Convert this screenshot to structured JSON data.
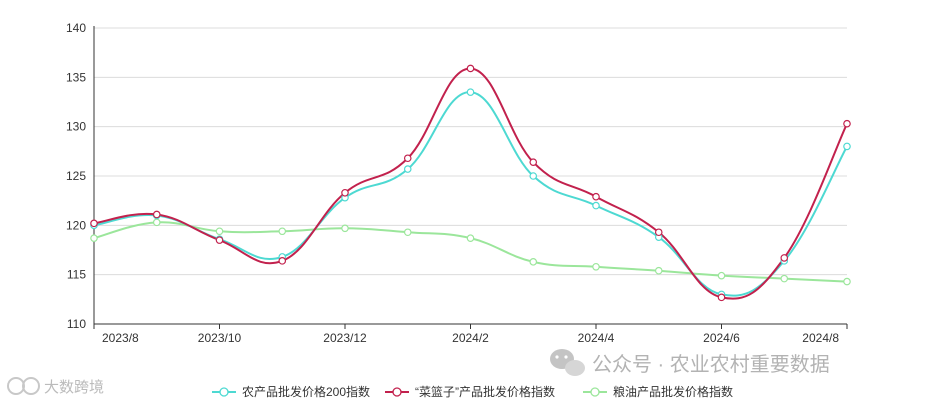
{
  "chart_data": {
    "type": "line",
    "x": [
      "2023/8",
      "2023/9",
      "2023/10",
      "2023/11",
      "2023/12",
      "2024/1",
      "2024/2",
      "2024/3",
      "2024/4",
      "2024/5",
      "2024/6",
      "2024/7",
      "2024/8"
    ],
    "xtick_labels": [
      "2023/8",
      "2023/10",
      "2023/12",
      "2024/2",
      "2024/4",
      "2024/6",
      "2024/8"
    ],
    "ylim": [
      110,
      140
    ],
    "yticks": [
      110,
      115,
      120,
      125,
      130,
      135,
      140
    ],
    "grid": true,
    "legend_position": "bottom",
    "series": [
      {
        "name": "农产品批发价格200指数",
        "color": "#4dd9d2",
        "values": [
          120.0,
          121.0,
          118.6,
          116.8,
          122.8,
          125.7,
          133.5,
          125.0,
          122.0,
          118.8,
          113.0,
          116.4,
          128.0
        ]
      },
      {
        "name": "“菜篮子”产品批发价格指数",
        "color": "#c2214d",
        "values": [
          120.2,
          121.1,
          118.5,
          116.4,
          123.3,
          126.8,
          135.9,
          126.4,
          122.9,
          119.3,
          112.7,
          116.7,
          130.3
        ]
      },
      {
        "name": "粮油产品批发价格指数",
        "color": "#9be69b",
        "values": [
          118.7,
          120.3,
          119.4,
          119.4,
          119.7,
          119.3,
          118.7,
          116.3,
          115.8,
          115.4,
          114.9,
          114.6,
          114.3
        ]
      }
    ]
  },
  "watermarks": {
    "channel": "公众号 · 农业农村重要数据",
    "brand": "大数跨境"
  }
}
